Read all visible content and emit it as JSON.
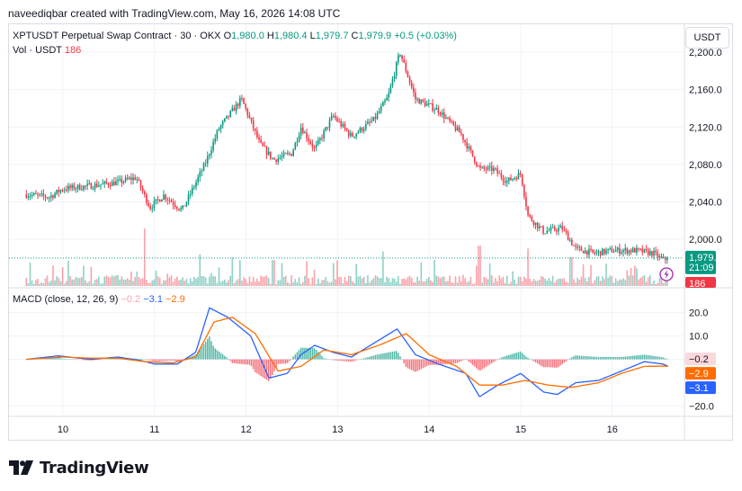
{
  "header": {
    "credit": "naveediqbar created with TradingView.com, May 16, 2026 14:08 UTC"
  },
  "legend": {
    "symbol": "XPTUSDT Perpetual Swap Contract · 30 · OKX",
    "open_label": "O",
    "open": "1,980.0",
    "high_label": "H",
    "high": "1,980.4",
    "low_label": "L",
    "low": "1,979.7",
    "close_label": "C",
    "close": "1,979.9",
    "change": "+0.5 (+0.03%)",
    "vol_label": "Vol · USDT",
    "vol_value": "186",
    "macd_label": "MACD (close, 12, 26, 9)",
    "macd_hist": "−0.2",
    "macd_line": "−3.1",
    "macd_signal": "−2.9"
  },
  "currency_button": "USDT",
  "price_badge": {
    "price": "1,979.9",
    "countdown": "21:09"
  },
  "vol_badge": "186",
  "macd_badges": {
    "hist": "−0.2",
    "signal": "−2.9",
    "macd": "−3.1"
  },
  "brand": "TradingView",
  "colors": {
    "up": "#089981",
    "down": "#f23645",
    "macd": "#2962ff",
    "signal": "#ff6d00",
    "grid": "#f0f3fa",
    "border": "#d9dce3",
    "alert": "#9c27b0"
  },
  "icons": [
    "tradingview-logo-icon",
    "alert-icon"
  ],
  "chart_data": [
    {
      "type": "candlestick",
      "title": "XPTUSDT Perpetual Swap Contract · 30 · OKX",
      "x_ticks": [
        "10",
        "11",
        "12",
        "13",
        "14",
        "15",
        "16"
      ],
      "y_ticks": [
        "2,200.0",
        "2,160.0",
        "2,120.0",
        "2,080.0",
        "2,040.0",
        "2,000.0"
      ],
      "ylim": [
        1950,
        2202
      ],
      "interval_minutes": 30,
      "last_price": 1979.9,
      "path_keypoints": [
        {
          "day": 9.6,
          "price": 2048
        },
        {
          "day": 9.85,
          "price": 2045
        },
        {
          "day": 10.0,
          "price": 2054
        },
        {
          "day": 10.3,
          "price": 2057
        },
        {
          "day": 10.6,
          "price": 2061
        },
        {
          "day": 10.8,
          "price": 2066
        },
        {
          "day": 10.95,
          "price": 2034
        },
        {
          "day": 11.1,
          "price": 2047
        },
        {
          "day": 11.3,
          "price": 2031
        },
        {
          "day": 11.55,
          "price": 2080
        },
        {
          "day": 11.7,
          "price": 2118
        },
        {
          "day": 11.95,
          "price": 2150
        },
        {
          "day": 12.15,
          "price": 2102
        },
        {
          "day": 12.3,
          "price": 2085
        },
        {
          "day": 12.5,
          "price": 2092
        },
        {
          "day": 12.6,
          "price": 2120
        },
        {
          "day": 12.75,
          "price": 2096
        },
        {
          "day": 12.95,
          "price": 2132
        },
        {
          "day": 13.15,
          "price": 2110
        },
        {
          "day": 13.4,
          "price": 2128
        },
        {
          "day": 13.55,
          "price": 2152
        },
        {
          "day": 13.68,
          "price": 2200
        },
        {
          "day": 13.85,
          "price": 2150
        },
        {
          "day": 14.1,
          "price": 2138
        },
        {
          "day": 14.35,
          "price": 2112
        },
        {
          "day": 14.55,
          "price": 2075
        },
        {
          "day": 14.7,
          "price": 2075
        },
        {
          "day": 14.85,
          "price": 2062
        },
        {
          "day": 15.0,
          "price": 2070
        },
        {
          "day": 15.08,
          "price": 2025
        },
        {
          "day": 15.25,
          "price": 2008
        },
        {
          "day": 15.45,
          "price": 2012
        },
        {
          "day": 15.6,
          "price": 1990
        },
        {
          "day": 15.8,
          "price": 1985
        },
        {
          "day": 16.0,
          "price": 1988
        },
        {
          "day": 16.25,
          "price": 1988
        },
        {
          "day": 16.45,
          "price": 1985
        },
        {
          "day": 16.55,
          "price": 1978
        },
        {
          "day": 16.62,
          "price": 1980
        }
      ]
    },
    {
      "type": "bar",
      "title": "Vol · USDT",
      "last_value": 186,
      "spikes": [
        {
          "day": 10.9,
          "relative": 1.0
        },
        {
          "day": 11.5,
          "relative": 0.55
        },
        {
          "day": 12.3,
          "relative": 0.45
        },
        {
          "day": 13.5,
          "relative": 0.6
        },
        {
          "day": 14.55,
          "relative": 0.7
        },
        {
          "day": 15.08,
          "relative": 0.65
        },
        {
          "day": 15.55,
          "relative": 0.5
        }
      ]
    },
    {
      "type": "line",
      "title": "MACD (close, 12, 26, 9)",
      "y_ticks": [
        "20.0",
        "10.0",
        "0.0",
        "−20.0"
      ],
      "ylim": [
        -24,
        26
      ],
      "series": [
        {
          "name": "MACD",
          "color": "#2962ff",
          "last": -3.1,
          "points": [
            [
              9.6,
              0
            ],
            [
              9.95,
              1.5
            ],
            [
              10.3,
              0
            ],
            [
              10.6,
              1
            ],
            [
              10.85,
              -0.5
            ],
            [
              11.0,
              -2
            ],
            [
              11.25,
              -2
            ],
            [
              11.45,
              3
            ],
            [
              11.6,
              22
            ],
            [
              11.8,
              18
            ],
            [
              12.05,
              10
            ],
            [
              12.25,
              -8
            ],
            [
              12.45,
              -6
            ],
            [
              12.6,
              2
            ],
            [
              12.75,
              6
            ],
            [
              12.95,
              3
            ],
            [
              13.15,
              1
            ],
            [
              13.4,
              7
            ],
            [
              13.65,
              13
            ],
            [
              13.85,
              2
            ],
            [
              14.1,
              -2
            ],
            [
              14.4,
              -6
            ],
            [
              14.55,
              -16
            ],
            [
              14.75,
              -11
            ],
            [
              15.0,
              -6
            ],
            [
              15.25,
              -14
            ],
            [
              15.4,
              -15
            ],
            [
              15.6,
              -10
            ],
            [
              15.85,
              -9
            ],
            [
              16.1,
              -5
            ],
            [
              16.35,
              -1
            ],
            [
              16.55,
              -2
            ],
            [
              16.62,
              -3.1
            ]
          ]
        },
        {
          "name": "Signal",
          "color": "#ff6d00",
          "last": -2.9,
          "points": [
            [
              9.6,
              0
            ],
            [
              10.0,
              1
            ],
            [
              10.3,
              0.5
            ],
            [
              10.6,
              0.5
            ],
            [
              10.9,
              -1
            ],
            [
              11.2,
              -1.5
            ],
            [
              11.45,
              1
            ],
            [
              11.65,
              16
            ],
            [
              11.85,
              18
            ],
            [
              12.1,
              11
            ],
            [
              12.35,
              -5
            ],
            [
              12.6,
              -3
            ],
            [
              12.85,
              4
            ],
            [
              13.15,
              2
            ],
            [
              13.45,
              6
            ],
            [
              13.75,
              11
            ],
            [
              14.0,
              2
            ],
            [
              14.3,
              -3
            ],
            [
              14.55,
              -11
            ],
            [
              14.8,
              -11
            ],
            [
              15.05,
              -9
            ],
            [
              15.3,
              -11
            ],
            [
              15.55,
              -12
            ],
            [
              15.85,
              -10
            ],
            [
              16.1,
              -6
            ],
            [
              16.35,
              -3
            ],
            [
              16.62,
              -2.9
            ]
          ]
        }
      ],
      "histogram_last": -0.2
    }
  ]
}
